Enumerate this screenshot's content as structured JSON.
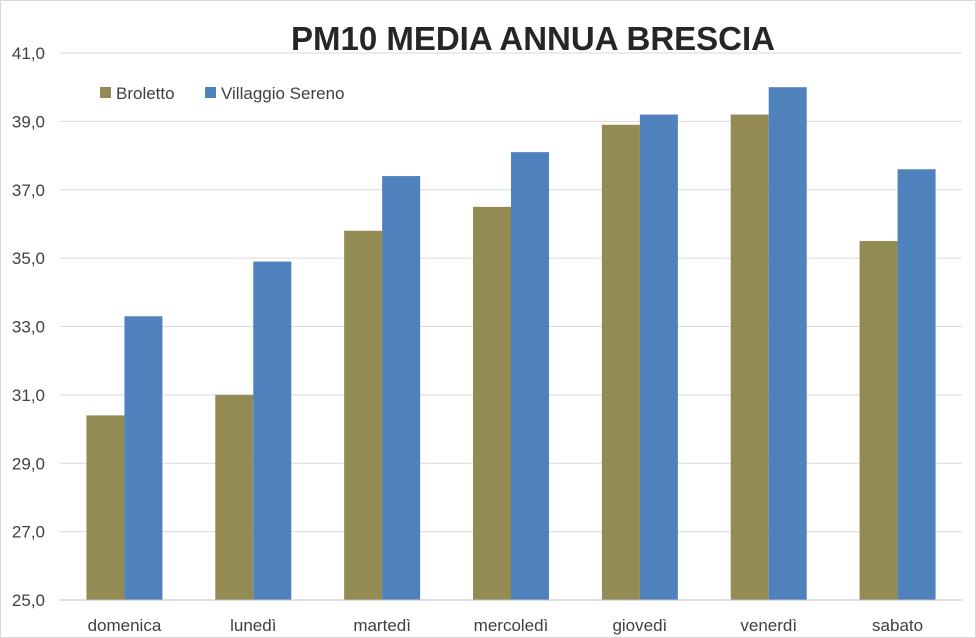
{
  "chart_data": {
    "type": "bar",
    "title": "PM10 MEDIA ANNUA BRESCIA",
    "xlabel": "",
    "ylabel": "",
    "categories": [
      "domenica",
      "lunedì",
      "martedì",
      "mercoledì",
      "giovedì",
      "venerdì",
      "sabato"
    ],
    "series": [
      {
        "name": "Broletto",
        "color": "#948A54",
        "values": [
          30.4,
          31.0,
          35.8,
          36.5,
          38.9,
          39.2,
          35.5
        ]
      },
      {
        "name": "Villaggio Sereno",
        "color": "#4F81BD",
        "values": [
          33.3,
          34.9,
          37.4,
          38.1,
          39.2,
          40.0,
          37.6
        ]
      }
    ],
    "ylim": [
      25.0,
      41.0
    ],
    "yticks": [
      "25,0",
      "27,0",
      "29,0",
      "31,0",
      "33,0",
      "35,0",
      "37,0",
      "39,0",
      "41,0"
    ],
    "grid": true,
    "legend_position": "top-left"
  }
}
